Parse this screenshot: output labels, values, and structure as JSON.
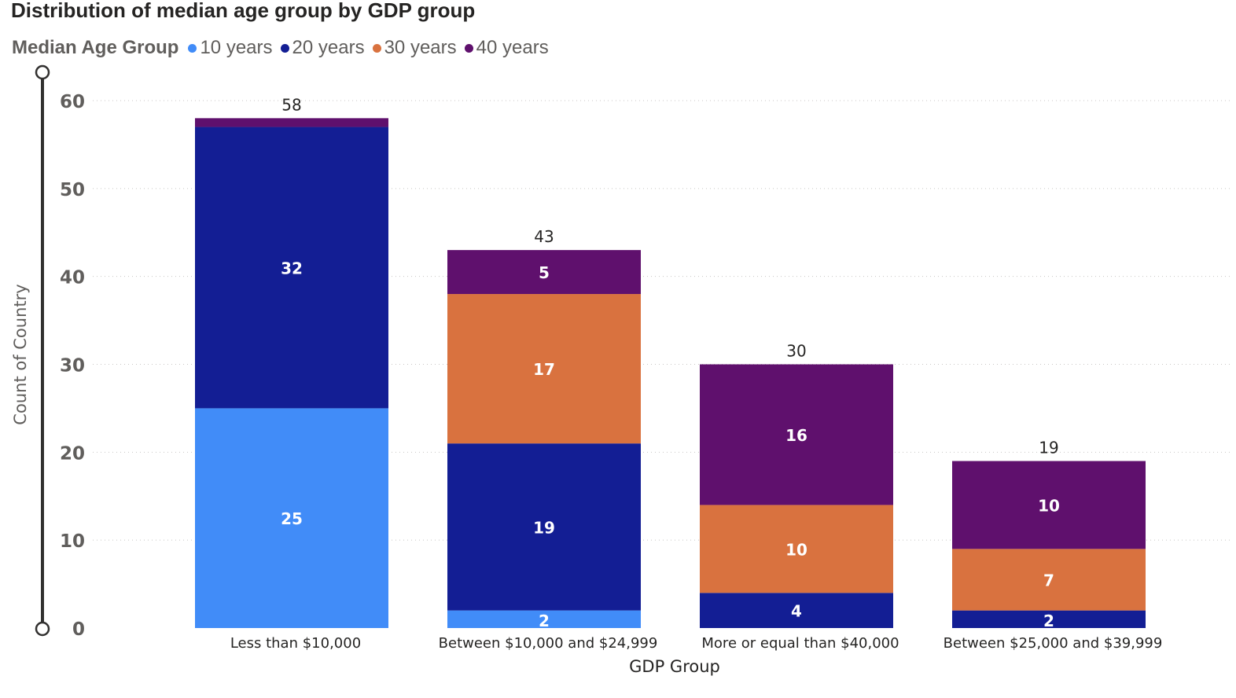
{
  "chart_data": {
    "type": "bar",
    "stacked": true,
    "title": "Distribution of median age group by GDP group",
    "xlabel": "GDP Group",
    "ylabel": "Count of Country",
    "ylim": [
      0,
      60
    ],
    "yticks": [
      0,
      10,
      20,
      30,
      40,
      50,
      60
    ],
    "grid": true,
    "legend": {
      "title": "Median Age Group",
      "placement": "top-left"
    },
    "categories": [
      "Less than $10,000",
      "Between $10,000 and $24,999",
      "More or equal than $40,000",
      "Between $25,000 and $39,999"
    ],
    "series": [
      {
        "name": "10 years",
        "color": "#418cf8",
        "values": [
          25,
          2,
          0,
          0
        ]
      },
      {
        "name": "20 years",
        "color": "#131e94",
        "values": [
          32,
          19,
          4,
          2
        ]
      },
      {
        "name": "30 years",
        "color": "#d9723f",
        "values": [
          0,
          17,
          10,
          7
        ]
      },
      {
        "name": "40 years",
        "color": "#5f106d",
        "values": [
          1,
          5,
          16,
          10
        ]
      }
    ],
    "totals": [
      58,
      43,
      30,
      19
    ],
    "segment_labels": [
      [
        "25",
        "2",
        "",
        ""
      ],
      [
        "32",
        "19",
        "4",
        "2"
      ],
      [
        "",
        "17",
        "10",
        "7"
      ],
      [
        "",
        "5",
        "16",
        "10"
      ]
    ]
  }
}
